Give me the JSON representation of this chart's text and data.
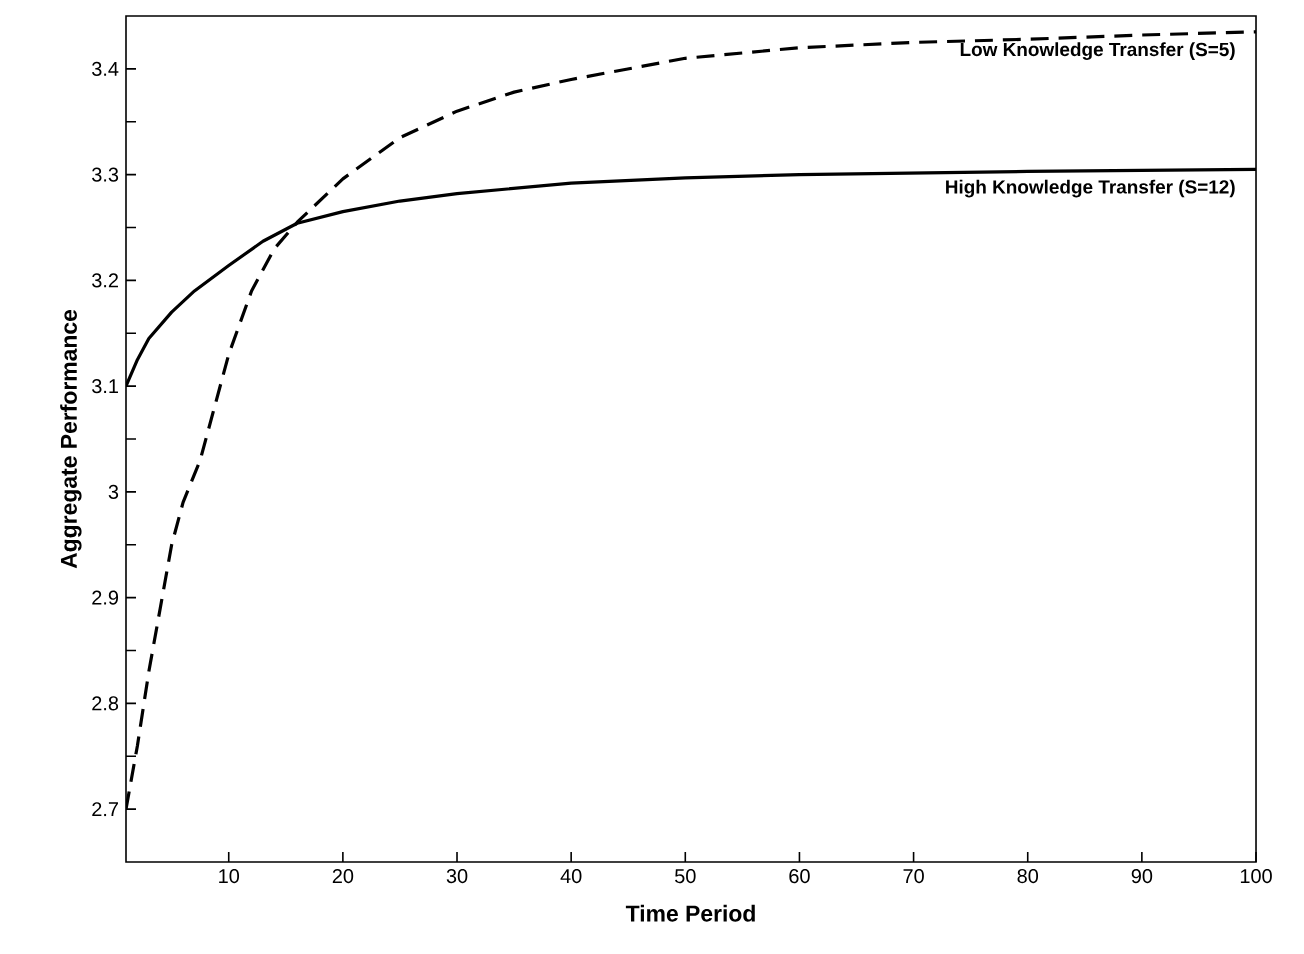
{
  "chart_data": {
    "type": "line",
    "xlabel": "Time Period",
    "ylabel": "Aggregate Performance",
    "xlim": [
      1,
      100
    ],
    "ylim": [
      2.65,
      3.45
    ],
    "xticks": [
      10,
      20,
      30,
      40,
      50,
      60,
      70,
      80,
      90,
      100
    ],
    "yticks": [
      2.7,
      {
        "value": 2.75,
        "label": null
      },
      2.8,
      {
        "value": 2.85,
        "label": null
      },
      2.9,
      {
        "value": 2.95,
        "label": null
      },
      3,
      {
        "value": 3.05,
        "label": null
      },
      3.1,
      {
        "value": 3.15,
        "label": null
      },
      3.2,
      {
        "value": 3.25,
        "label": null
      },
      3.3,
      {
        "value": 3.35,
        "label": null
      },
      3.4
    ],
    "grid": false,
    "legend": false,
    "marker": "none",
    "series": [
      {
        "name": "Low Knowledge Transfer (S=5)",
        "color": "#000000",
        "line_style": "dashed",
        "x": [
          1,
          2,
          3,
          4,
          5,
          6,
          7.5,
          10,
          12,
          14,
          16,
          20,
          25,
          30,
          35,
          40,
          50,
          60,
          70,
          80,
          90,
          100
        ],
        "values": [
          2.7,
          2.76,
          2.83,
          2.89,
          2.95,
          2.99,
          3.03,
          3.13,
          3.19,
          3.23,
          3.255,
          3.296,
          3.335,
          3.36,
          3.378,
          3.39,
          3.41,
          3.42,
          3.425,
          3.428,
          3.432,
          3.435
        ]
      },
      {
        "name": "High Knowledge Transfer (S=12)",
        "color": "#000000",
        "line_style": "solid",
        "x": [
          1,
          2,
          3,
          5,
          7,
          10,
          13,
          16,
          20,
          25,
          30,
          40,
          50,
          60,
          80,
          100
        ],
        "values": [
          3.1,
          3.125,
          3.145,
          3.17,
          3.19,
          3.214,
          3.237,
          3.254,
          3.265,
          3.275,
          3.282,
          3.292,
          3.297,
          3.3,
          3.303,
          3.305
        ]
      }
    ]
  }
}
